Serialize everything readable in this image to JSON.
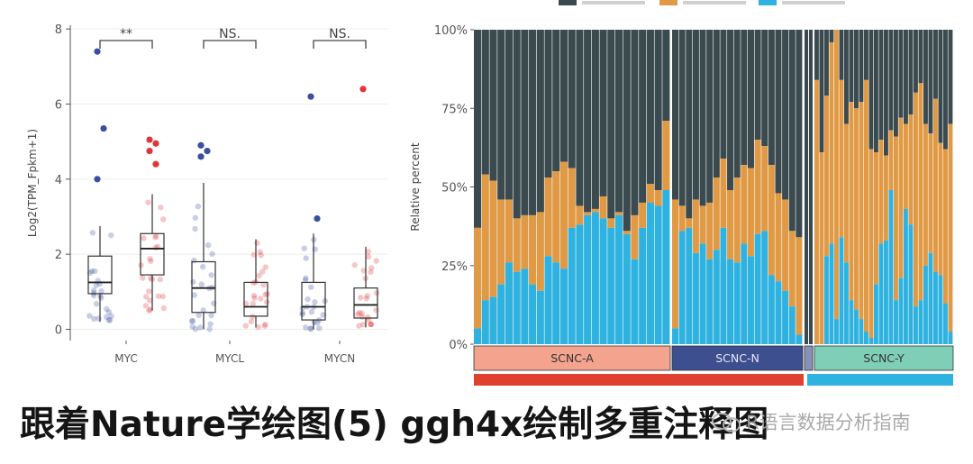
{
  "chart_data": [
    {
      "type": "boxplot",
      "ylabel": "Log2(TPM_Fpkm+1)",
      "ylim": [
        -0.3,
        8.1
      ],
      "yticks": [
        0,
        2,
        4,
        6,
        8
      ],
      "grid": true,
      "categories": [
        "MYC",
        "MYCL",
        "MYCN"
      ],
      "significance": [
        "**",
        "NS.",
        "NS."
      ],
      "colors": {
        "group1": "#3b4fa0",
        "group2": "#e0353a"
      },
      "boxes": [
        {
          "category": "MYC",
          "group": 1,
          "min": 0.2,
          "q1": 0.95,
          "median": 1.25,
          "q3": 1.95,
          "max": 2.75
        },
        {
          "category": "MYC",
          "group": 2,
          "min": 0.5,
          "q1": 1.45,
          "median": 2.15,
          "q3": 2.55,
          "max": 3.6
        },
        {
          "category": "MYCL",
          "group": 1,
          "min": 0.0,
          "q1": 0.45,
          "median": 1.1,
          "q3": 1.8,
          "max": 3.9
        },
        {
          "category": "MYCL",
          "group": 2,
          "min": 0.05,
          "q1": 0.35,
          "median": 0.6,
          "q3": 1.25,
          "max": 2.4
        },
        {
          "category": "MYCN",
          "group": 1,
          "min": 0.0,
          "q1": 0.25,
          "median": 0.6,
          "q3": 1.25,
          "max": 2.55
        },
        {
          "category": "MYCN",
          "group": 2,
          "min": 0.05,
          "q1": 0.3,
          "median": 0.65,
          "q3": 1.1,
          "max": 2.2
        }
      ],
      "outliers": [
        {
          "category": "MYC",
          "group": 1,
          "values": [
            7.4,
            5.35,
            4.0
          ]
        },
        {
          "category": "MYC",
          "group": 2,
          "values": [
            5.05,
            4.95,
            4.75,
            4.4
          ]
        },
        {
          "category": "MYCL",
          "group": 1,
          "values": [
            4.9,
            4.75,
            4.6
          ]
        },
        {
          "category": "MYCN",
          "group": 1,
          "values": [
            6.2,
            2.95
          ]
        },
        {
          "category": "MYCN",
          "group": 2,
          "values": [
            6.4
          ]
        }
      ]
    },
    {
      "type": "bar",
      "stacked": true,
      "ylabel": "Relative percent",
      "ylim": [
        0,
        100
      ],
      "yticks": [
        "0%",
        "25%",
        "50%",
        "75%",
        "100%"
      ],
      "series": [
        {
          "color": "#3a4a4f"
        },
        {
          "color": "#e09a45"
        },
        {
          "color": "#2fb2e0"
        }
      ],
      "groups": [
        {
          "name": "SCNC-A",
          "color": "#f3a38e",
          "blue": [
            5,
            14,
            15,
            19,
            26,
            23,
            24,
            19,
            17,
            28,
            26,
            24,
            37,
            38,
            41,
            42,
            40,
            37,
            41,
            35,
            27,
            37,
            45,
            44,
            49
          ],
          "total": [
            37,
            54,
            52,
            46,
            46,
            40,
            41,
            41,
            42,
            53,
            55,
            58,
            56,
            44,
            42,
            43,
            47,
            40,
            42,
            36,
            41,
            45,
            51,
            49,
            71
          ]
        },
        {
          "name": "SCNC-N",
          "color": "#3d4f8f",
          "blue": [
            5,
            36,
            37,
            29,
            32,
            27,
            30,
            37,
            27,
            26,
            32,
            28,
            35,
            36,
            22,
            20,
            17,
            12,
            3
          ],
          "total": [
            46,
            44,
            40,
            46,
            44,
            45,
            53,
            59,
            49,
            53,
            57,
            56,
            65,
            63,
            57,
            48,
            46,
            36,
            34
          ]
        },
        {
          "name": "SCNC-Y",
          "color": "#7fcfb7",
          "blue": [
            0,
            0,
            28,
            32,
            8,
            34,
            26,
            14,
            11,
            8,
            4,
            2,
            19,
            32,
            33,
            49,
            14,
            21,
            43,
            38,
            12,
            14,
            25,
            29,
            23,
            22,
            13,
            4
          ],
          "total": [
            84,
            61,
            79,
            96,
            100,
            84,
            70,
            77,
            75,
            77,
            84,
            62,
            61,
            65,
            60,
            68,
            66,
            72,
            70,
            73,
            80,
            83,
            70,
            67,
            78,
            64,
            62,
            70
          ]
        }
      ]
    }
  ],
  "caption": {
    "title": "跟着Nature学绘图(5) ggh4x绘制多重注释图",
    "watermark": "R语言数据分析指南"
  }
}
